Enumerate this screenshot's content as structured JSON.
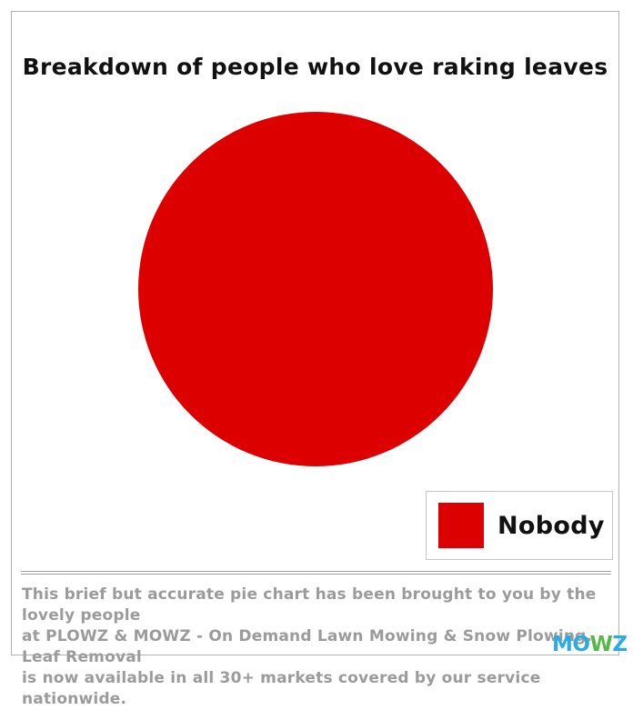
{
  "chart_data": {
    "type": "pie",
    "title": "Breakdown of people who love raking leaves",
    "labels": [
      "Nobody"
    ],
    "values": [
      100
    ],
    "colors": [
      "#dd0000"
    ],
    "legend_position": "bottom-right",
    "legend_entries": [
      "Nobody"
    ]
  },
  "footer": {
    "lines": [
      "This brief but accurate pie chart has been brought to you by the lovely people",
      "at PLOWZ & MOWZ -  On Demand Lawn Mowing & Snow Plowing. Leaf Removal",
      "is now available in all 30+ markets covered by our service nationwide."
    ],
    "text_color": "#9b9b9b"
  },
  "logo": {
    "text": "MOWZ",
    "parts": [
      {
        "text": "MO",
        "color": "#2aabe2"
      },
      {
        "text": "W",
        "color": "#56b947"
      },
      {
        "text": "Z",
        "color": "#2aabe2"
      }
    ]
  }
}
